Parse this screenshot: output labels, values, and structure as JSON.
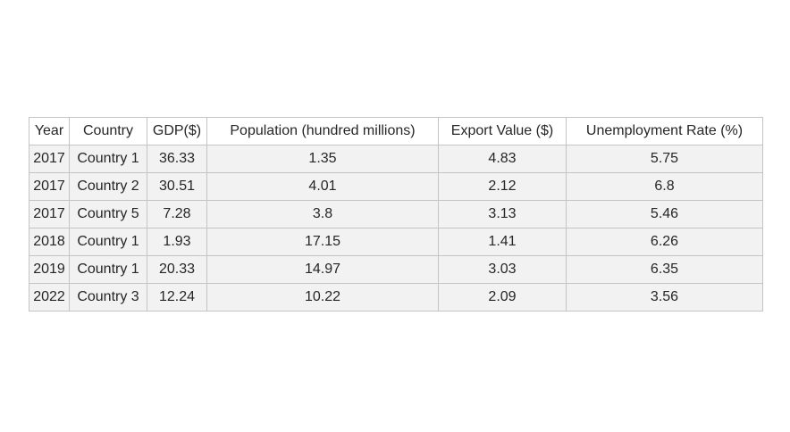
{
  "chart_data": {
    "type": "table",
    "columns": [
      "Year",
      "Country",
      "GDP($)",
      "Population (hundred millions)",
      "Export Value ($)",
      "Unemployment Rate (%)"
    ],
    "rows": [
      [
        "2017",
        "Country 1",
        "36.33",
        "1.35",
        "4.83",
        "5.75"
      ],
      [
        "2017",
        "Country 2",
        "30.51",
        "4.01",
        "2.12",
        "6.8"
      ],
      [
        "2017",
        "Country 5",
        "7.28",
        "3.8",
        "3.13",
        "5.46"
      ],
      [
        "2018",
        "Country 1",
        "1.93",
        "17.15",
        "1.41",
        "6.26"
      ],
      [
        "2019",
        "Country 1",
        "20.33",
        "14.97",
        "3.03",
        "6.35"
      ],
      [
        "2022",
        "Country 3",
        "12.24",
        "10.22",
        "2.09",
        "3.56"
      ]
    ]
  }
}
